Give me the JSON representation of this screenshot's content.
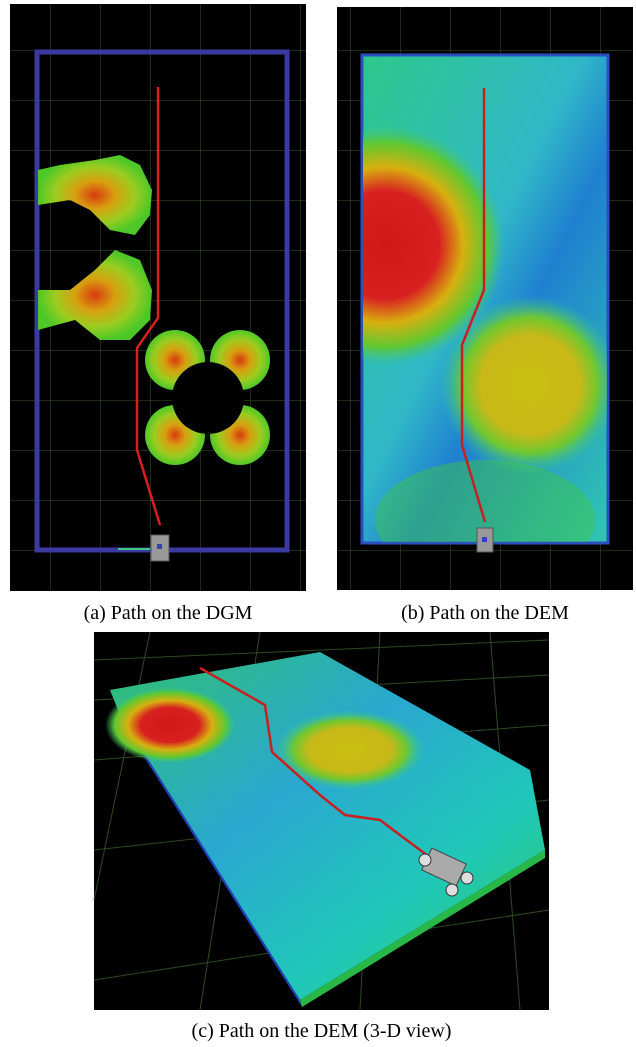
{
  "panels": [
    {
      "caption": "(a) Path on the DGM"
    },
    {
      "caption": "(b) Path on the DEM"
    },
    {
      "caption": "(c) Path on the DEM (3-D view)"
    }
  ]
}
